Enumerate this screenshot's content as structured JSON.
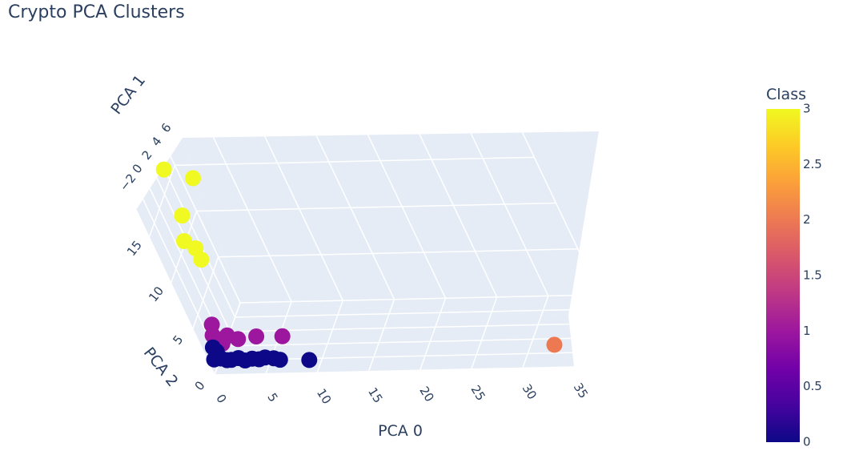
{
  "title": "Crypto PCA Clusters",
  "chart_data": {
    "type": "scatter3d",
    "title": "Crypto PCA Clusters",
    "axes": {
      "x": {
        "label": "PCA 0",
        "ticks": [
          "0",
          "5",
          "10",
          "15",
          "20",
          "25",
          "30",
          "35"
        ]
      },
      "y": {
        "label": "PCA 1",
        "ticks": [
          "−2",
          "0",
          "2",
          "4",
          "6"
        ]
      },
      "z": {
        "label": "PCA 2",
        "ticks": [
          "0",
          "5",
          "10",
          "15"
        ]
      }
    },
    "colorbar": {
      "title": "Class",
      "ticks": [
        "0",
        "0.5",
        "1",
        "1.5",
        "2",
        "2.5",
        "3"
      ],
      "range": [
        0,
        3
      ],
      "colorscale": [
        "#0d0887",
        "#46039f",
        "#7201a8",
        "#9c179e",
        "#bd3786",
        "#d8576b",
        "#ed7953",
        "#fb9f3a",
        "#fdca26",
        "#f0f921"
      ]
    },
    "class_colors": {
      "0": "#0d0887",
      "1": "#9c179e",
      "2": "#ed7953",
      "3": "#f0f921"
    },
    "series": [
      {
        "class": 3,
        "points": [
          [
            0.2,
            -1.5,
            16.5
          ],
          [
            2.6,
            -1.5,
            15.5
          ],
          [
            0.6,
            -0.2,
            12.5
          ],
          [
            0.2,
            0.8,
            10.5
          ],
          [
            1.2,
            1.2,
            10
          ],
          [
            1.4,
            1.5,
            9
          ]
        ]
      },
      {
        "class": 1,
        "points": [
          [
            0.6,
            3.5,
            3.5
          ],
          [
            0.3,
            3.7,
            2.5
          ],
          [
            1.2,
            3.5,
            2
          ],
          [
            2.4,
            3.4,
            1.8
          ],
          [
            4.4,
            3.6,
            2.2
          ],
          [
            6.8,
            3.4,
            2.0
          ],
          [
            0.8,
            3.6,
            1.5
          ],
          [
            1.8,
            3.9,
            2.6
          ]
        ]
      },
      {
        "class": 0,
        "points": [
          [
            -0.2,
            4.5,
            0.5
          ],
          [
            0.5,
            4.5,
            0.6
          ],
          [
            1.0,
            4.5,
            0.4
          ],
          [
            1.5,
            4.6,
            0.5
          ],
          [
            2.2,
            4.5,
            0.6
          ],
          [
            2.8,
            4.6,
            0.4
          ],
          [
            3.5,
            4.5,
            0.5
          ],
          [
            4.2,
            4.6,
            0.5
          ],
          [
            4.8,
            4.5,
            0.6
          ],
          [
            5.6,
            4.5,
            0.5
          ],
          [
            6.2,
            4.6,
            0.4
          ],
          [
            0.3,
            4.3,
            1.2
          ],
          [
            9.0,
            4.6,
            0.3
          ],
          [
            0.0,
            4.1,
            1.5
          ]
        ]
      },
      {
        "class": 2,
        "points": [
          [
            33.2,
            4.4,
            1.2
          ]
        ]
      }
    ]
  }
}
